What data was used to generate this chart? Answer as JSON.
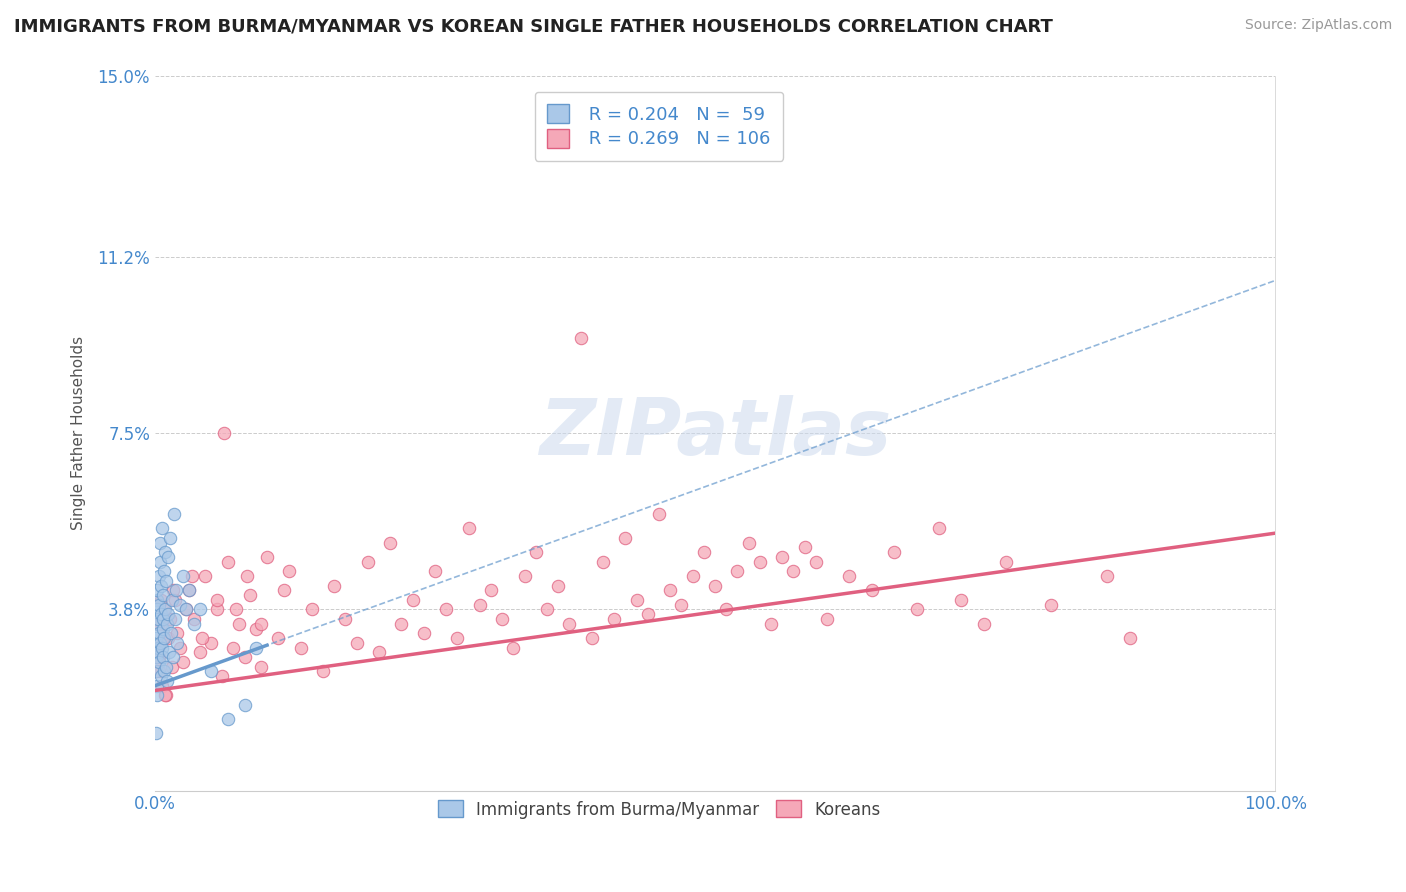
{
  "title": "IMMIGRANTS FROM BURMA/MYANMAR VS KOREAN SINGLE FATHER HOUSEHOLDS CORRELATION CHART",
  "source": "Source: ZipAtlas.com",
  "ylabel": "Single Father Households",
  "x_min": 0.0,
  "x_max": 100.0,
  "y_min": 0.0,
  "y_max": 15.0,
  "y_ticks": [
    0.0,
    3.8,
    7.5,
    11.2,
    15.0
  ],
  "x_tick_labels": [
    "0.0%",
    "100.0%"
  ],
  "y_tick_labels": [
    "",
    "3.8%",
    "7.5%",
    "11.2%",
    "15.0%"
  ],
  "blue_color": "#aac8e8",
  "pink_color": "#f5a8b8",
  "blue_edge": "#6699cc",
  "pink_edge": "#e06080",
  "axis_color": "#4488cc",
  "grid_color": "#cccccc",
  "blue_R": 0.204,
  "blue_N": 59,
  "pink_R": 0.269,
  "pink_N": 106,
  "blue_intercept": 2.2,
  "blue_slope": 0.085,
  "pink_intercept": 2.1,
  "pink_slope": 0.033,
  "blue_scatter_x": [
    0.05,
    0.08,
    0.1,
    0.12,
    0.15,
    0.18,
    0.2,
    0.22,
    0.25,
    0.28,
    0.3,
    0.32,
    0.35,
    0.38,
    0.4,
    0.42,
    0.45,
    0.48,
    0.5,
    0.55,
    0.58,
    0.6,
    0.65,
    0.68,
    0.7,
    0.72,
    0.75,
    0.78,
    0.8,
    0.85,
    0.9,
    0.92,
    0.95,
    1.0,
    1.05,
    1.1,
    1.15,
    1.2,
    1.25,
    1.3,
    1.4,
    1.5,
    1.6,
    1.7,
    1.8,
    1.9,
    2.0,
    2.2,
    2.5,
    2.8,
    3.0,
    3.5,
    4.0,
    5.0,
    6.5,
    8.0,
    9.0,
    0.06,
    0.14
  ],
  "blue_scatter_y": [
    2.8,
    3.2,
    2.5,
    3.5,
    4.0,
    3.8,
    2.2,
    4.2,
    3.0,
    2.9,
    3.6,
    4.5,
    3.3,
    2.7,
    3.9,
    4.8,
    3.1,
    5.2,
    2.4,
    3.7,
    4.3,
    3.0,
    5.5,
    3.4,
    2.8,
    4.1,
    3.6,
    2.5,
    4.6,
    3.2,
    5.0,
    3.8,
    2.6,
    4.4,
    3.5,
    2.3,
    4.9,
    3.7,
    2.9,
    5.3,
    3.3,
    4.0,
    2.8,
    5.8,
    3.6,
    4.2,
    3.1,
    3.9,
    4.5,
    3.8,
    4.2,
    3.5,
    3.8,
    2.5,
    1.5,
    1.8,
    3.0,
    1.2,
    2.0
  ],
  "pink_scatter_x": [
    0.1,
    0.2,
    0.35,
    0.5,
    0.65,
    0.8,
    1.0,
    1.2,
    1.5,
    1.8,
    2.0,
    2.5,
    3.0,
    3.5,
    4.0,
    4.5,
    5.0,
    5.5,
    6.0,
    6.5,
    7.0,
    7.5,
    8.0,
    8.5,
    9.0,
    9.5,
    10.0,
    11.0,
    12.0,
    13.0,
    14.0,
    15.0,
    16.0,
    17.0,
    18.0,
    19.0,
    20.0,
    21.0,
    22.0,
    23.0,
    24.0,
    25.0,
    26.0,
    27.0,
    28.0,
    29.0,
    30.0,
    31.0,
    32.0,
    33.0,
    34.0,
    35.0,
    36.0,
    37.0,
    38.0,
    39.0,
    40.0,
    41.0,
    42.0,
    43.0,
    44.0,
    45.0,
    46.0,
    47.0,
    48.0,
    49.0,
    50.0,
    51.0,
    52.0,
    53.0,
    54.0,
    55.0,
    56.0,
    57.0,
    58.0,
    59.0,
    60.0,
    62.0,
    64.0,
    66.0,
    68.0,
    70.0,
    72.0,
    74.0,
    76.0,
    80.0,
    85.0,
    87.0,
    0.15,
    0.25,
    0.4,
    0.55,
    0.7,
    0.9,
    1.3,
    1.6,
    2.2,
    2.8,
    3.3,
    4.2,
    5.5,
    6.2,
    7.2,
    8.2,
    9.5,
    11.5
  ],
  "pink_scatter_y": [
    2.5,
    3.0,
    2.8,
    3.5,
    2.2,
    3.8,
    2.0,
    3.2,
    2.6,
    4.0,
    3.3,
    2.7,
    4.2,
    3.6,
    2.9,
    4.5,
    3.1,
    3.8,
    2.4,
    4.8,
    3.0,
    3.5,
    2.8,
    4.1,
    3.4,
    2.6,
    4.9,
    3.2,
    4.6,
    3.0,
    3.8,
    2.5,
    4.3,
    3.6,
    3.1,
    4.8,
    2.9,
    5.2,
    3.5,
    4.0,
    3.3,
    4.6,
    3.8,
    3.2,
    5.5,
    3.9,
    4.2,
    3.6,
    3.0,
    4.5,
    5.0,
    3.8,
    4.3,
    3.5,
    9.5,
    3.2,
    4.8,
    3.6,
    5.3,
    4.0,
    3.7,
    5.8,
    4.2,
    3.9,
    4.5,
    5.0,
    4.3,
    3.8,
    4.6,
    5.2,
    4.8,
    3.5,
    4.9,
    4.6,
    5.1,
    4.8,
    3.6,
    4.5,
    4.2,
    5.0,
    3.8,
    5.5,
    4.0,
    3.5,
    4.8,
    3.9,
    4.5,
    3.2,
    2.8,
    3.5,
    2.5,
    4.0,
    3.2,
    2.0,
    3.6,
    4.2,
    3.0,
    3.8,
    4.5,
    3.2,
    4.0,
    7.5,
    3.8,
    4.5,
    3.5,
    4.2
  ]
}
